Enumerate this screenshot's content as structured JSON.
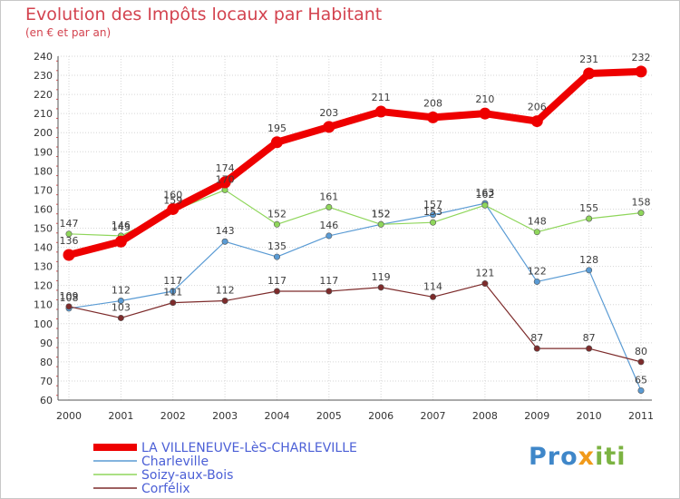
{
  "chart_data": {
    "type": "line",
    "title": "Evolution des Impôts locaux par Habitant",
    "subtitle": "(en € et par an)",
    "xlabel": "",
    "ylabel": "",
    "ylim": [
      60,
      240
    ],
    "yticks": [
      60,
      70,
      80,
      90,
      100,
      110,
      120,
      130,
      140,
      150,
      160,
      170,
      180,
      190,
      200,
      210,
      220,
      230,
      240
    ],
    "categories": [
      "2000",
      "2001",
      "2002",
      "2003",
      "2004",
      "2005",
      "2006",
      "2007",
      "2008",
      "2009",
      "2010",
      "2011"
    ],
    "grid": true,
    "legend_position": "bottom-left",
    "series": [
      {
        "name": "LA VILLENEUVE-LèS-CHARLEVILLE",
        "color": "#ee0000",
        "width": 8,
        "values": [
          136,
          143,
          160,
          174,
          195,
          203,
          211,
          208,
          210,
          206,
          231,
          232
        ]
      },
      {
        "name": "Charleville",
        "color": "#5a9bd4",
        "width": 1.2,
        "values": [
          108,
          112,
          117,
          143,
          135,
          146,
          152,
          157,
          163,
          122,
          128,
          65
        ]
      },
      {
        "name": "Soizy-aux-Bois",
        "color": "#8fd65b",
        "width": 1.2,
        "values": [
          147,
          146,
          159,
          170,
          152,
          161,
          152,
          153,
          162,
          148,
          155,
          158
        ]
      },
      {
        "name": "Corfélix",
        "color": "#7d2b2b",
        "width": 1.2,
        "values": [
          109,
          103,
          111,
          112,
          117,
          117,
          119,
          114,
          121,
          87,
          87,
          80
        ]
      }
    ]
  },
  "logo": {
    "part1": "Pro",
    "part2": "x",
    "part3": "iti"
  }
}
